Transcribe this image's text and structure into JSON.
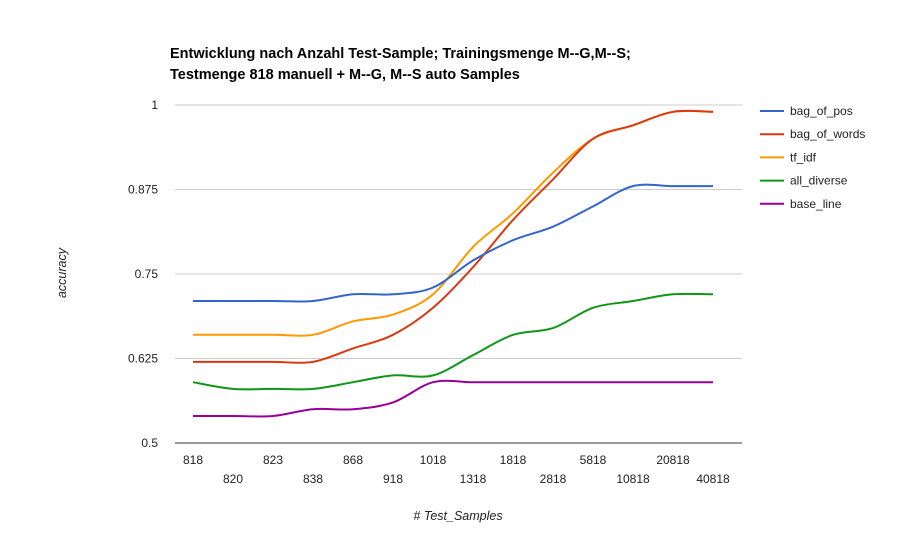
{
  "chart_data": {
    "type": "line",
    "title": [
      "Entwicklung nach Anzahl Test-Sample; Trainingsmenge M--G,M--S;",
      "Testmenge 818 manuell + M--G, M--S auto Samples"
    ],
    "xlabel": "# Test_Samples",
    "ylabel": "accuracy",
    "categories": [
      "818",
      "820",
      "823",
      "838",
      "868",
      "918",
      "1018",
      "1318",
      "1818",
      "2818",
      "5818",
      "10818",
      "20818",
      "40818"
    ],
    "ylim": [
      0.5,
      1
    ],
    "yticks": [
      "0.5",
      "0.625",
      "0.75",
      "0.875",
      "1"
    ],
    "grid": true,
    "legend_position": "right",
    "series": [
      {
        "name": "bag_of_pos",
        "color": "#3366cc",
        "values": [
          0.71,
          0.71,
          0.71,
          0.71,
          0.72,
          0.72,
          0.73,
          0.77,
          0.8,
          0.82,
          0.85,
          0.88,
          0.88,
          0.88
        ]
      },
      {
        "name": "bag_of_words",
        "color": "#dc3912",
        "values": [
          0.62,
          0.62,
          0.62,
          0.62,
          0.64,
          0.66,
          0.7,
          0.76,
          0.83,
          0.89,
          0.95,
          0.97,
          0.99,
          0.99
        ]
      },
      {
        "name": "tf_idf",
        "color": "#ff9900",
        "values": [
          0.66,
          0.66,
          0.66,
          0.66,
          0.68,
          0.69,
          0.72,
          0.79,
          0.84,
          0.9,
          0.95,
          0.97,
          0.99,
          0.99
        ]
      },
      {
        "name": "all_diverse",
        "color": "#109618",
        "values": [
          0.59,
          0.58,
          0.58,
          0.58,
          0.59,
          0.6,
          0.6,
          0.63,
          0.66,
          0.67,
          0.7,
          0.71,
          0.72,
          0.72
        ]
      },
      {
        "name": "base_line",
        "color": "#990099",
        "values": [
          0.54,
          0.54,
          0.54,
          0.55,
          0.55,
          0.56,
          0.59,
          0.59,
          0.59,
          0.59,
          0.59,
          0.59,
          0.59,
          0.59
        ]
      }
    ]
  }
}
